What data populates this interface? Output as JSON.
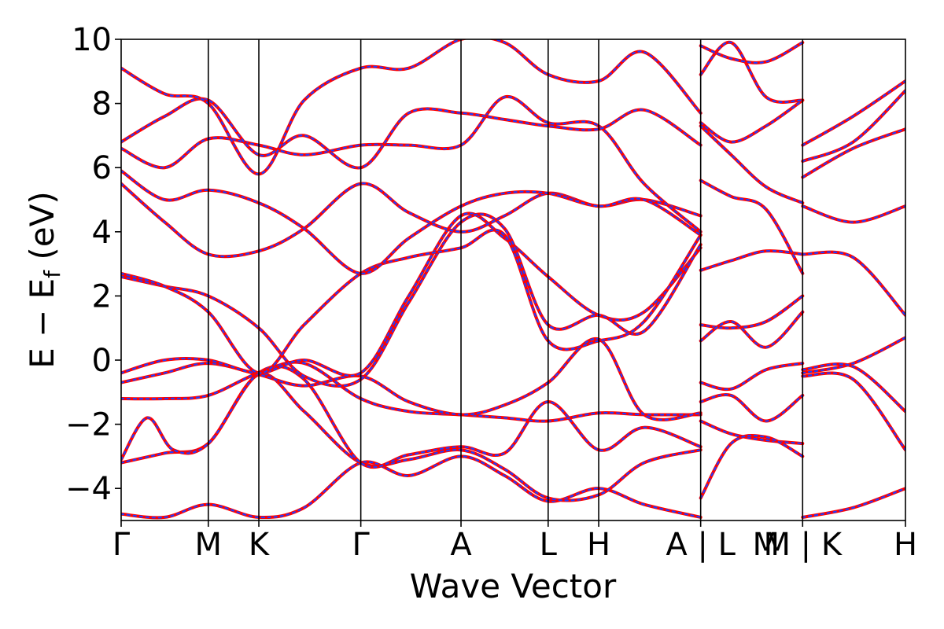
{
  "chart_data": {
    "type": "line",
    "xlabel": "Wave Vector",
    "ylabel_main": "E − E",
    "ylabel_sub": "f",
    "ylabel_unit": " (eV)",
    "ylim": [
      -5,
      10
    ],
    "yticks": [
      -4,
      -2,
      0,
      2,
      4,
      6,
      8,
      10
    ],
    "ytick_labels": [
      "−4",
      "−2",
      "0",
      "2",
      "4",
      "6",
      "8",
      "10"
    ],
    "xlim": [
      0,
      9.0
    ],
    "kpoints": [
      {
        "label": "Γ",
        "x": 0.0
      },
      {
        "label": "M",
        "x": 1.0
      },
      {
        "label": "K",
        "x": 1.58
      },
      {
        "label": "Γ",
        "x": 2.75
      },
      {
        "label": "A",
        "x": 3.9
      },
      {
        "label": "L",
        "x": 4.9
      },
      {
        "label": "H",
        "x": 5.48
      },
      {
        "label": "A | L",
        "x": 6.65
      },
      {
        "label": "M | K",
        "x": 7.82
      },
      {
        "label": "H",
        "x": 9.0
      }
    ],
    "extra_tick_labels": [
      {
        "label": "M",
        "x": 7.4
      }
    ],
    "segment_breaks": [
      6.65,
      7.82
    ],
    "colors": {
      "band": "#ff0000",
      "overlay": "#1f3cff"
    },
    "series": [
      {
        "x": [
          0,
          0.5,
          1.0,
          1.58,
          2.1,
          2.75,
          3.3,
          3.9,
          4.4,
          4.9,
          5.48,
          6.0,
          6.65
        ],
        "y": [
          -4.8,
          -4.9,
          -4.5,
          -4.9,
          -4.6,
          -3.2,
          -3.6,
          -3.0,
          -3.6,
          -4.4,
          -4.0,
          -4.5,
          -4.9
        ]
      },
      {
        "x": [
          0,
          0.5,
          1.0,
          1.58,
          2.1,
          2.75,
          3.3,
          3.9,
          4.4,
          4.9,
          5.48,
          6.0,
          6.65
        ],
        "y": [
          -3.2,
          -2.9,
          -2.6,
          -0.45,
          -1.6,
          -3.2,
          -3.1,
          -2.8,
          -3.4,
          -4.3,
          -4.2,
          -3.2,
          -2.8
        ]
      },
      {
        "x": [
          0,
          0.3,
          0.6,
          1.0,
          1.58,
          2.1,
          2.75,
          3.3,
          3.9,
          4.4,
          4.9,
          5.48,
          6.0,
          6.65
        ],
        "y": [
          -3.1,
          -1.8,
          -2.8,
          -2.6,
          -0.4,
          -0.6,
          -3.2,
          -2.95,
          -2.7,
          -2.9,
          -1.3,
          -2.8,
          -2.1,
          -2.7
        ]
      },
      {
        "x": [
          0,
          0.5,
          1.0,
          1.58,
          2.1,
          2.75,
          3.3,
          3.9,
          4.4,
          4.9,
          5.48,
          6.0,
          6.65
        ],
        "y": [
          -1.2,
          -1.2,
          -1.1,
          -0.4,
          -0.1,
          -1.2,
          -1.6,
          -1.7,
          -1.8,
          -1.9,
          -1.65,
          -1.7,
          -1.7
        ]
      },
      {
        "x": [
          0,
          0.5,
          1.0,
          1.58,
          2.1,
          2.75,
          3.3,
          3.9,
          4.4,
          4.9,
          5.48,
          6.0,
          6.65
        ],
        "y": [
          -0.7,
          -0.4,
          -0.1,
          -0.45,
          -0.8,
          -0.5,
          -1.3,
          -1.7,
          -1.4,
          -0.7,
          0.65,
          -1.7,
          -1.65
        ]
      },
      {
        "x": [
          0,
          0.5,
          1.0,
          1.58,
          2.1,
          2.75,
          3.3,
          3.9,
          4.4,
          4.9,
          5.48,
          6.0,
          6.65
        ],
        "y": [
          -0.4,
          0.0,
          0.0,
          -0.4,
          0.0,
          -0.4,
          2.0,
          4.5,
          3.8,
          2.6,
          1.4,
          1.5,
          3.5
        ]
      },
      {
        "x": [
          0,
          0.5,
          1.0,
          1.58,
          2.1,
          2.75,
          3.3,
          3.9,
          4.4,
          4.9,
          5.48,
          6.0,
          6.65
        ],
        "y": [
          2.6,
          2.3,
          2.0,
          1.0,
          -0.5,
          -0.6,
          1.8,
          4.3,
          4.1,
          1.1,
          1.4,
          0.9,
          3.6
        ]
      },
      {
        "x": [
          0,
          0.5,
          1.0,
          1.58,
          2.1,
          2.75,
          3.3,
          3.9,
          4.4,
          4.9,
          5.48,
          6.0,
          6.65
        ],
        "y": [
          2.7,
          2.3,
          1.5,
          -0.4,
          1.1,
          2.7,
          3.2,
          3.5,
          3.9,
          0.6,
          0.6,
          1.2,
          3.9
        ]
      },
      {
        "x": [
          0,
          0.5,
          1.0,
          1.58,
          2.1,
          2.75,
          3.3,
          3.9,
          4.4,
          4.9,
          5.48,
          6.0,
          6.65
        ],
        "y": [
          5.5,
          4.3,
          3.3,
          3.4,
          4.1,
          5.5,
          4.6,
          4.0,
          4.5,
          5.2,
          4.8,
          5.0,
          4.5
        ]
      },
      {
        "x": [
          0,
          0.5,
          1.0,
          1.58,
          2.1,
          2.75,
          3.3,
          3.9,
          4.4,
          4.9,
          5.48,
          6.0,
          6.65
        ],
        "y": [
          5.9,
          5.0,
          5.3,
          4.9,
          4.1,
          2.7,
          3.8,
          4.8,
          5.2,
          5.2,
          4.8,
          5.0,
          3.9
        ]
      },
      {
        "x": [
          0,
          0.5,
          1.0,
          1.58,
          2.1,
          2.75,
          3.3,
          3.9,
          4.4,
          4.9,
          5.48,
          6.0,
          6.65
        ],
        "y": [
          6.6,
          6.0,
          6.9,
          6.7,
          6.4,
          6.7,
          6.7,
          6.7,
          8.2,
          7.4,
          7.3,
          5.5,
          4.0
        ]
      },
      {
        "x": [
          0,
          0.5,
          1.0,
          1.58,
          2.1,
          2.75,
          3.3,
          3.9,
          4.4,
          4.9,
          5.48,
          6.0,
          6.65
        ],
        "y": [
          6.8,
          7.6,
          8.1,
          6.4,
          7.0,
          6.0,
          7.7,
          7.7,
          7.5,
          7.3,
          7.2,
          7.8,
          6.7
        ]
      },
      {
        "x": [
          0,
          0.5,
          1.0,
          1.58,
          2.1,
          2.75,
          3.3,
          3.9,
          4.4,
          4.9,
          5.48,
          6.0,
          6.65
        ],
        "y": [
          9.1,
          8.3,
          8.0,
          5.8,
          8.1,
          9.1,
          9.1,
          10.0,
          9.9,
          8.9,
          8.7,
          9.6,
          7.7
        ]
      },
      {
        "x": [
          6.65,
          7.0,
          7.4,
          7.82
        ],
        "y": [
          2.8,
          3.1,
          3.4,
          3.3
        ]
      },
      {
        "x": [
          6.65,
          7.0,
          7.4,
          7.82
        ],
        "y": [
          1.1,
          1.0,
          1.2,
          2.0
        ]
      },
      {
        "x": [
          6.65,
          7.0,
          7.4,
          7.82
        ],
        "y": [
          0.6,
          1.2,
          0.4,
          1.5
        ]
      },
      {
        "x": [
          6.65,
          7.0,
          7.4,
          7.82
        ],
        "y": [
          -0.7,
          -0.9,
          -0.3,
          -0.1
        ]
      },
      {
        "x": [
          6.65,
          7.0,
          7.4,
          7.82
        ],
        "y": [
          -1.3,
          -1.1,
          -1.9,
          -1.1
        ]
      },
      {
        "x": [
          6.65,
          7.0,
          7.4,
          7.82
        ],
        "y": [
          -1.9,
          -2.3,
          -2.5,
          -2.6
        ]
      },
      {
        "x": [
          6.65,
          7.0,
          7.4,
          7.82
        ],
        "y": [
          -4.3,
          -2.6,
          -2.4,
          -3.0
        ]
      },
      {
        "x": [
          6.65,
          7.0,
          7.4,
          7.82
        ],
        "y": [
          5.6,
          5.1,
          4.7,
          2.7
        ]
      },
      {
        "x": [
          6.65,
          7.0,
          7.4,
          7.82
        ],
        "y": [
          7.3,
          6.4,
          5.4,
          4.9
        ]
      },
      {
        "x": [
          6.65,
          7.0,
          7.4,
          7.82
        ],
        "y": [
          7.4,
          6.8,
          7.3,
          8.1
        ]
      },
      {
        "x": [
          6.65,
          7.0,
          7.4,
          7.82
        ],
        "y": [
          8.9,
          9.9,
          8.2,
          8.1
        ]
      },
      {
        "x": [
          6.65,
          7.0,
          7.4,
          7.82
        ],
        "y": [
          9.8,
          9.4,
          9.3,
          9.9
        ]
      },
      {
        "x": [
          7.82,
          8.4,
          9.0
        ],
        "y": [
          -4.9,
          -4.6,
          -4.0
        ]
      },
      {
        "x": [
          7.82,
          8.4,
          9.0
        ],
        "y": [
          -0.5,
          -0.6,
          -2.8
        ]
      },
      {
        "x": [
          7.82,
          8.4,
          9.0
        ],
        "y": [
          -0.4,
          -0.1,
          0.7
        ]
      },
      {
        "x": [
          7.82,
          8.4,
          9.0
        ],
        "y": [
          -0.3,
          -0.2,
          -1.6
        ]
      },
      {
        "x": [
          7.82,
          8.4,
          9.0
        ],
        "y": [
          3.3,
          3.2,
          1.4
        ]
      },
      {
        "x": [
          7.82,
          8.4,
          9.0
        ],
        "y": [
          4.8,
          4.3,
          4.8
        ]
      },
      {
        "x": [
          7.82,
          8.4,
          9.0
        ],
        "y": [
          5.7,
          6.6,
          7.2
        ]
      },
      {
        "x": [
          7.82,
          8.4,
          9.0
        ],
        "y": [
          6.2,
          6.8,
          8.4
        ]
      },
      {
        "x": [
          7.82,
          8.4,
          9.0
        ],
        "y": [
          6.7,
          7.6,
          8.7
        ]
      }
    ]
  }
}
